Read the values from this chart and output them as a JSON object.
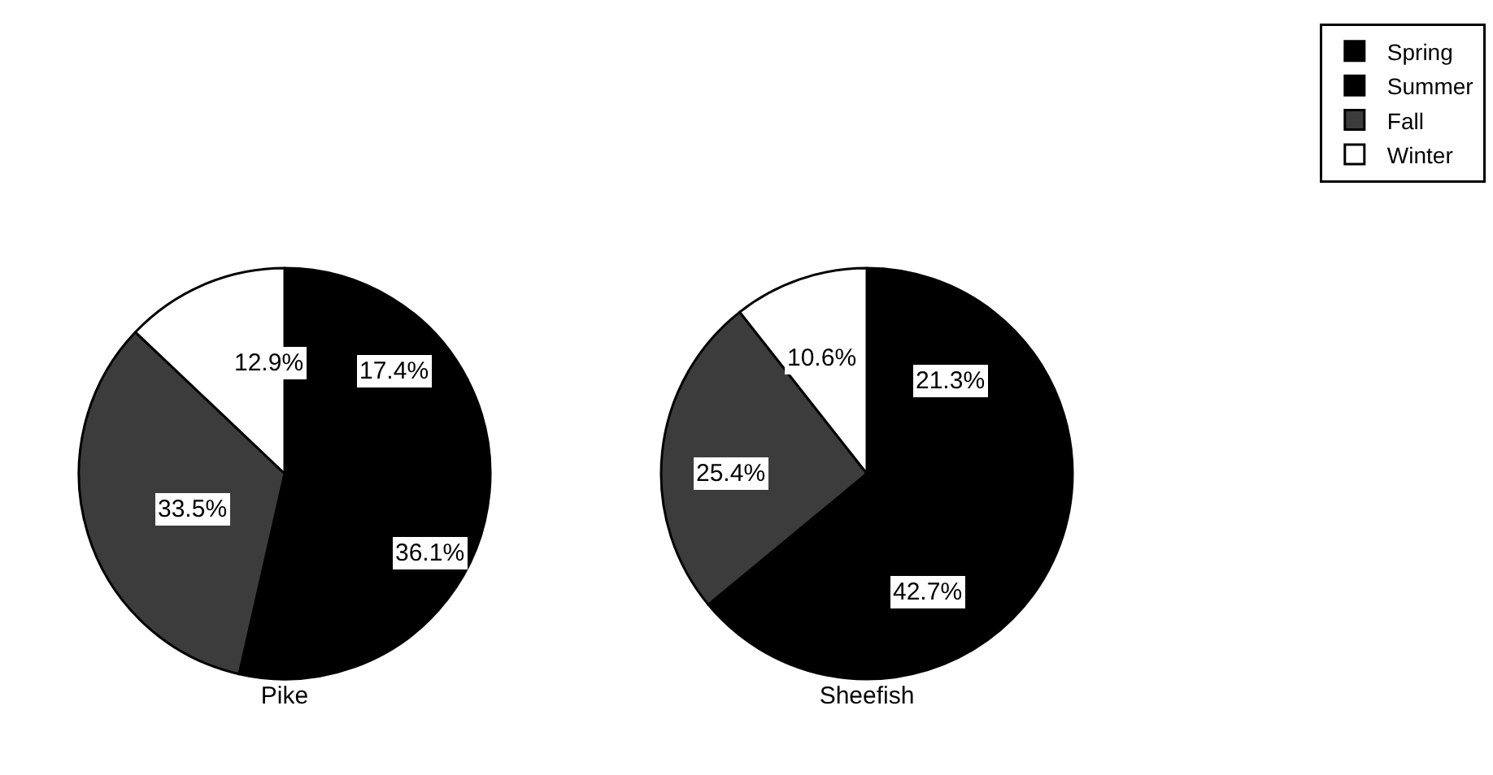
{
  "chart_data": [
    {
      "type": "pie",
      "title": "Pike",
      "categories": [
        "Spring",
        "Summer",
        "Fall",
        "Winter"
      ],
      "values": [
        17.4,
        36.1,
        33.5,
        12.9
      ],
      "value_labels": [
        "17.4%",
        "36.1%",
        "33.5%",
        "12.9%"
      ],
      "colors": [
        "#000000",
        "#000000",
        "#3c3c3c",
        "#ffffff"
      ],
      "legend": "top right"
    },
    {
      "type": "pie",
      "title": "Sheefish",
      "categories": [
        null,
        null,
        null,
        null
      ],
      "values": [
        21.3,
        42.7,
        25.4,
        10.6
      ],
      "value_labels": [
        "21.3%",
        "42.7%",
        "25.4%",
        "10.6%"
      ],
      "colors": [
        "#000000",
        "#000000",
        "#3c3c3c",
        "#ffffff"
      ]
    }
  ]
}
